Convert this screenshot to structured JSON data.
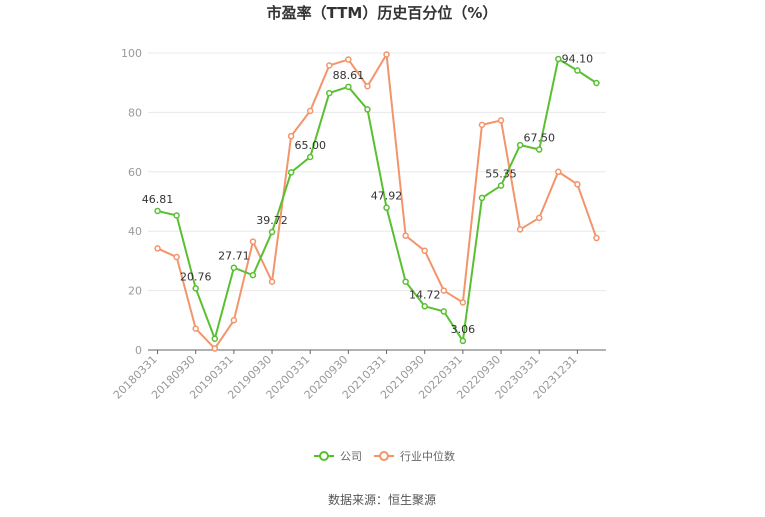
{
  "chart_data": {
    "type": "line",
    "title": "市盈率（TTM）历史百分位（%）",
    "xlabel": "",
    "ylabel": "",
    "ylim": [
      0,
      100
    ],
    "yticks": [
      0,
      20,
      40,
      60,
      80,
      100
    ],
    "x": [
      "20180331",
      "20180630",
      "20180930",
      "20181231",
      "20190331",
      "20190630",
      "20190930",
      "20191231",
      "20200331",
      "20200630",
      "20200930",
      "20201231",
      "20210331",
      "20210630",
      "20210930",
      "20211231",
      "20220331",
      "20220630",
      "20220930",
      "20221231",
      "20230331",
      "20230630",
      "20231231",
      "20240331"
    ],
    "x_tick_labels": [
      "20180331",
      "20180930",
      "20190331",
      "20190930",
      "20200331",
      "20200930",
      "20210331",
      "20210930",
      "20220331",
      "20220930",
      "20230331",
      "20231231"
    ],
    "series": [
      {
        "name": "公司",
        "color": "#5ac032",
        "values": [
          46.81,
          45.3,
          20.76,
          3.8,
          27.71,
          25.2,
          39.72,
          59.8,
          65.0,
          86.5,
          88.61,
          81.0,
          47.92,
          23.0,
          14.72,
          13.0,
          3.06,
          51.2,
          55.35,
          69.0,
          67.5,
          98.0,
          94.1,
          89.9
        ],
        "labels": [
          {
            "index": 0,
            "text": "46.81"
          },
          {
            "index": 2,
            "text": "20.76"
          },
          {
            "index": 4,
            "text": "27.71"
          },
          {
            "index": 6,
            "text": "39.72"
          },
          {
            "index": 8,
            "text": "65.00"
          },
          {
            "index": 10,
            "text": "88.61"
          },
          {
            "index": 12,
            "text": "47.92"
          },
          {
            "index": 14,
            "text": "14.72"
          },
          {
            "index": 16,
            "text": "3.06"
          },
          {
            "index": 18,
            "text": "55.35"
          },
          {
            "index": 20,
            "text": "67.50"
          },
          {
            "index": 22,
            "text": "94.10"
          }
        ]
      },
      {
        "name": "行业中位数",
        "color": "#f4946b",
        "values": [
          34.2,
          31.3,
          7.2,
          0.5,
          10.0,
          36.5,
          23.0,
          72.0,
          80.5,
          95.8,
          97.8,
          88.8,
          99.5,
          38.5,
          33.4,
          20.0,
          16.0,
          75.8,
          77.3,
          40.6,
          44.5,
          60.0,
          55.8,
          37.7
        ]
      }
    ],
    "legend": {
      "position": "bottom"
    },
    "grid": true
  },
  "source_text": "数据来源：恒生聚源"
}
